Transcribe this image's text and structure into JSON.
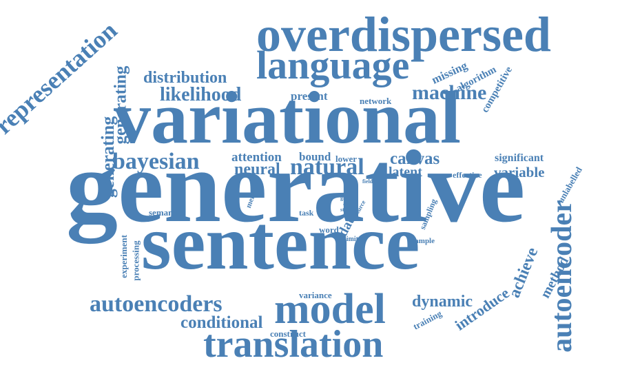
{
  "color": "#4a80b5",
  "words": [
    "representation",
    "overdispersed",
    "language",
    "distribution",
    "likelihood",
    "generating",
    "missing",
    "algorithm",
    "competitive",
    "present",
    "network",
    "machine",
    "variational",
    "generating",
    "bayesian",
    "attention",
    "bound",
    "lower",
    "canvas",
    "significant",
    "neural",
    "natural",
    "latent",
    "effective",
    "variable",
    "generative",
    "memory",
    "field",
    "gnmt",
    "autr",
    "state",
    "source",
    "semantic",
    "task",
    "data",
    "word",
    "sampling",
    "unlabelled",
    "limited",
    "sample",
    "experiment",
    "processing",
    "sentence",
    "autoencoder",
    "achieve",
    "method",
    "autoencoders",
    "variance",
    "dynamic",
    "introduce",
    "model",
    "conditional",
    "training",
    "construct",
    "translation"
  ]
}
